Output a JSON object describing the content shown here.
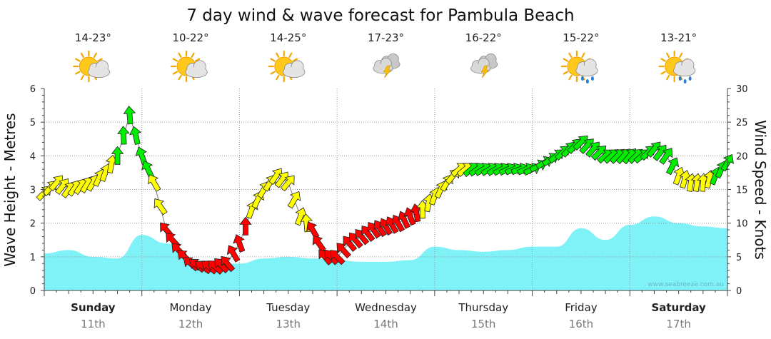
{
  "chart_data": {
    "type": "area",
    "title": "7 day wind & wave forecast for Pambula Beach",
    "ylabel_left": "Wave Height - Metres",
    "ylabel_right": "Wind Speed - Knots",
    "ylim_left": [
      0,
      6
    ],
    "ylim_right": [
      0,
      30
    ],
    "yticks_left": [
      "0",
      "1",
      "2",
      "3",
      "4",
      "5",
      "6"
    ],
    "yticks_right": [
      "0",
      "5",
      "10",
      "15",
      "20",
      "25",
      "30"
    ],
    "grid": true,
    "watermark": "www.seabreeze.com.au",
    "days": [
      {
        "day": "Sunday",
        "date": "11th",
        "bold": true,
        "temp": "14-23°",
        "icon": "sun-cloud-icon"
      },
      {
        "day": "Monday",
        "date": "12th",
        "bold": false,
        "temp": "10-22°",
        "icon": "sun-cloud-icon"
      },
      {
        "day": "Tuesday",
        "date": "13th",
        "bold": false,
        "temp": "14-25°",
        "icon": "sun-cloud-icon"
      },
      {
        "day": "Wednesday",
        "date": "14th",
        "bold": false,
        "temp": "17-23°",
        "icon": "storm-cloud-icon"
      },
      {
        "day": "Thursday",
        "date": "15th",
        "bold": false,
        "temp": "16-22°",
        "icon": "storm-cloud-icon"
      },
      {
        "day": "Friday",
        "date": "16th",
        "bold": false,
        "temp": "15-22°",
        "icon": "sun-rain-icon"
      },
      {
        "day": "Saturday",
        "date": "17th",
        "bold": true,
        "temp": "13-21°",
        "icon": "sun-rain-icon"
      }
    ],
    "wave_series": {
      "name": "Wave Height",
      "color": "#7ff2f8",
      "x_hours": [
        0,
        6,
        12,
        18,
        24,
        30,
        36,
        42,
        48,
        54,
        60,
        66,
        72,
        78,
        84,
        90,
        96,
        102,
        108,
        114,
        120,
        126,
        132,
        138,
        144,
        150,
        156,
        162,
        168
      ],
      "values": [
        1.1,
        1.2,
        1.0,
        0.95,
        1.65,
        1.4,
        0.9,
        0.8,
        0.8,
        0.95,
        1.0,
        0.95,
        0.9,
        0.85,
        0.85,
        0.9,
        1.3,
        1.2,
        1.15,
        1.2,
        1.3,
        1.3,
        1.85,
        1.5,
        1.95,
        2.2,
        2.0,
        1.9,
        1.85
      ]
    },
    "wind_series": {
      "name": "Wind Speed",
      "colors": {
        "light": "#ffff00",
        "moderate": "#ff0000",
        "strong": "#00ee00"
      },
      "x_hours": [
        0,
        3,
        6,
        9,
        12,
        15,
        18,
        21,
        24,
        27,
        30,
        33,
        36,
        39,
        42,
        45,
        48,
        51,
        54,
        57,
        60,
        63,
        66,
        69,
        72,
        75,
        78,
        81,
        84,
        87,
        90,
        93,
        96,
        99,
        102,
        105,
        108,
        111,
        114,
        117,
        120,
        123,
        126,
        129,
        132,
        135,
        138,
        141,
        144,
        147,
        150,
        153,
        156,
        159,
        162,
        165,
        168
      ],
      "knots": [
        14.5,
        16,
        15,
        15.5,
        16,
        17.5,
        20,
        26,
        20,
        16,
        9,
        6,
        4,
        3.5,
        3.5,
        4,
        7,
        12,
        15,
        17,
        16,
        11,
        9,
        5,
        5,
        7,
        8,
        9,
        9.5,
        10,
        11,
        12,
        14,
        16,
        18,
        18,
        18,
        18,
        18,
        18,
        18,
        19,
        20,
        21,
        22,
        21,
        20,
        20,
        20,
        20,
        21,
        20,
        17,
        16,
        16,
        17,
        19
      ],
      "direction_deg": [
        225,
        220,
        215,
        215,
        210,
        200,
        180,
        175,
        160,
        150,
        140,
        135,
        130,
        125,
        130,
        140,
        160,
        200,
        210,
        215,
        220,
        200,
        150,
        140,
        135,
        140,
        140,
        145,
        150,
        150,
        160,
        180,
        200,
        210,
        230,
        230,
        240,
        240,
        245,
        250,
        245,
        240,
        230,
        220,
        225,
        220,
        230,
        225,
        220,
        230,
        220,
        215,
        200,
        190,
        185,
        200,
        210
      ],
      "category": [
        "light",
        "light",
        "light",
        "light",
        "light",
        "light",
        "strong",
        "strong",
        "strong",
        "light",
        "moderate",
        "moderate",
        "moderate",
        "moderate",
        "moderate",
        "moderate",
        "moderate",
        "light",
        "light",
        "light",
        "light",
        "light",
        "moderate",
        "moderate",
        "moderate",
        "moderate",
        "moderate",
        "moderate",
        "moderate",
        "moderate",
        "moderate",
        "light",
        "light",
        "light",
        "light",
        "strong",
        "strong",
        "strong",
        "strong",
        "strong",
        "strong",
        "strong",
        "strong",
        "strong",
        "strong",
        "strong",
        "strong",
        "strong",
        "strong",
        "strong",
        "strong",
        "strong",
        "light",
        "light",
        "light",
        "strong",
        "strong"
      ]
    }
  }
}
